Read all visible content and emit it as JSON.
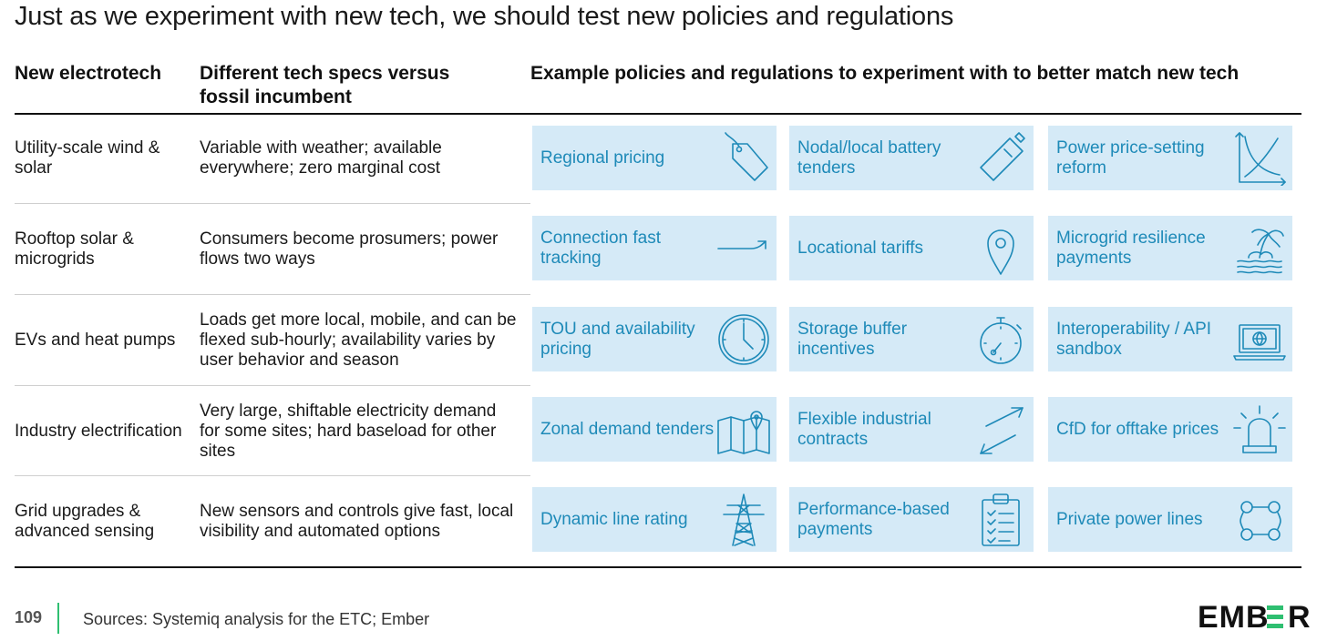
{
  "title": "Just as we experiment with new tech, we should test new policies and regulations",
  "headers": {
    "tech": "New electrotech",
    "specs": "Different tech specs versus fossil incumbent",
    "policies": "Example policies and regulations to experiment with to better match new tech"
  },
  "rows": [
    {
      "tech": "Utility-scale wind & solar",
      "specs": "Variable with weather; available everywhere; zero marginal cost",
      "policies": [
        {
          "label": "Regional pricing",
          "icon": "price-tag-icon"
        },
        {
          "label": "Nodal/local battery tenders",
          "icon": "battery-icon"
        },
        {
          "label": "Power price-setting reform",
          "icon": "supply-demand-curve-icon"
        }
      ]
    },
    {
      "tech": "Rooftop solar & microgrids",
      "specs": "Consumers become prosumers; power flows two ways",
      "policies": [
        {
          "label": "Connection fast tracking",
          "icon": "fast-track-arrow-icon"
        },
        {
          "label": "Locational tariffs",
          "icon": "map-pin-icon"
        },
        {
          "label": "Microgrid resilience payments",
          "icon": "island-palm-icon"
        }
      ]
    },
    {
      "tech": "EVs and heat pumps",
      "specs": "Loads get more local, mobile, and can be flexed sub-hourly; availability varies by user behavior and season",
      "policies": [
        {
          "label": "TOU and availability pricing",
          "icon": "clock-icon"
        },
        {
          "label": "Storage buffer incentives",
          "icon": "stopwatch-icon"
        },
        {
          "label": "Interoperability / API sandbox",
          "icon": "laptop-globe-icon"
        }
      ]
    },
    {
      "tech": "Industry electrification",
      "specs": "Very large, shiftable electricity demand for some sites; hard baseload for other sites",
      "policies": [
        {
          "label": "Zonal demand tenders",
          "icon": "folded-map-icon"
        },
        {
          "label": "Flexible industrial contracts",
          "icon": "bidirectional-arrows-icon"
        },
        {
          "label": "CfD for offtake prices",
          "icon": "siren-light-icon"
        }
      ]
    },
    {
      "tech": "Grid upgrades & advanced sensing",
      "specs": "New sensors and controls give fast, local visibility and automated options",
      "policies": [
        {
          "label": "Dynamic line rating",
          "icon": "transmission-tower-icon"
        },
        {
          "label": "Performance-based payments",
          "icon": "clipboard-checklist-icon"
        },
        {
          "label": "Private power lines",
          "icon": "network-circle-icon"
        }
      ]
    }
  ],
  "footer": {
    "page_number": "109",
    "sources": "Sources: Systemiq analysis for the ETC; Ember"
  },
  "logo_text": "EMBER",
  "colors": {
    "box_bg": "#d5eaf7",
    "box_text": "#1e8ab8",
    "icon": "#1e8ab8",
    "accent_green": "#2fbf71"
  }
}
